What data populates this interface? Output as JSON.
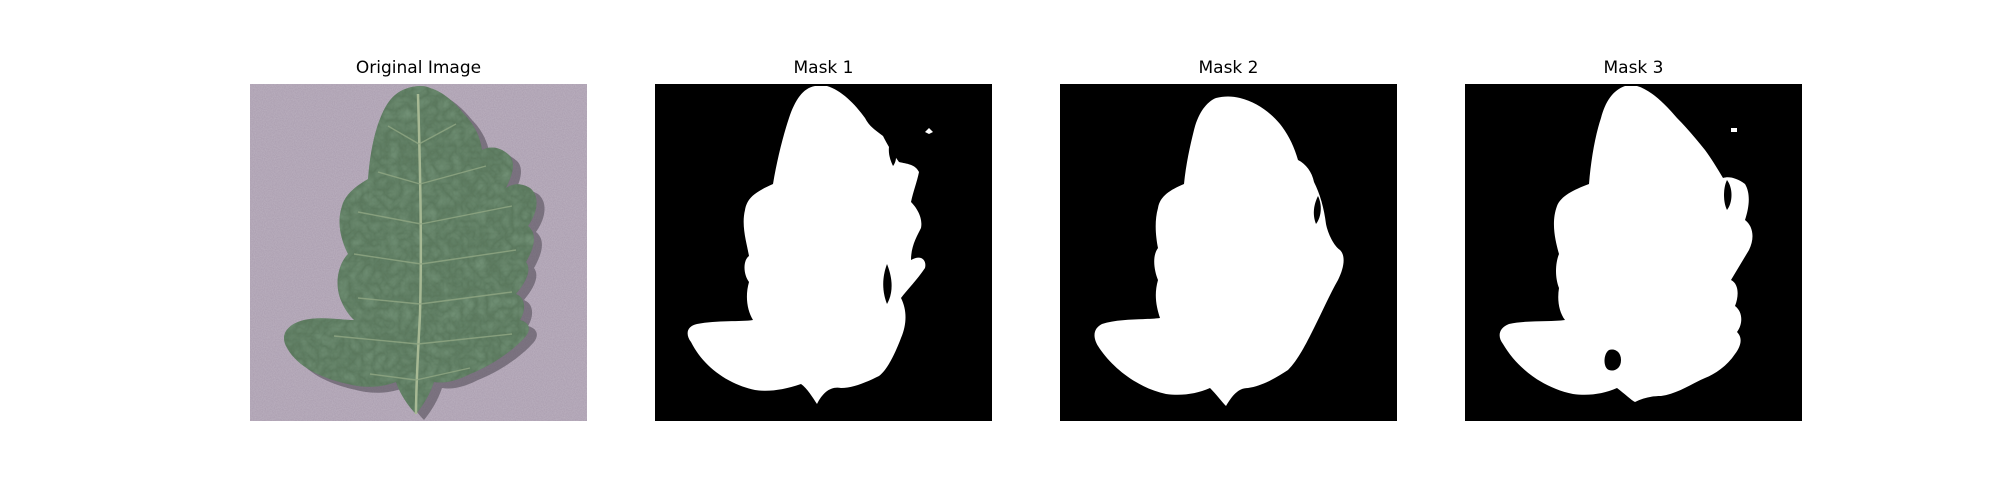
{
  "figure": {
    "panels": [
      {
        "title": "Original Image",
        "content": "leaf-photo"
      },
      {
        "title": "Mask 1",
        "content": "binary-mask"
      },
      {
        "title": "Mask 2",
        "content": "binary-mask"
      },
      {
        "title": "Mask 3",
        "content": "binary-mask"
      }
    ]
  },
  "colors": {
    "background_paper": "#a99cae",
    "leaf_dark": "#3f5a44",
    "leaf_mid": "#5e7d60",
    "mask_bg": "#000000",
    "mask_fg": "#ffffff"
  }
}
